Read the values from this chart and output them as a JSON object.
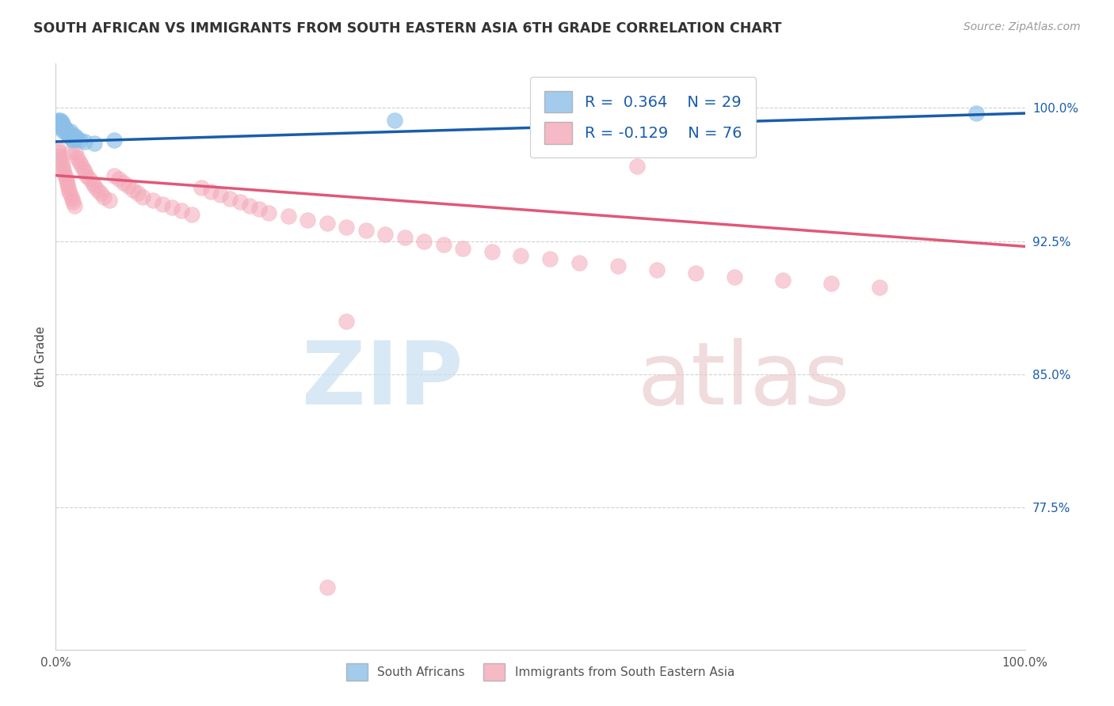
{
  "title": "SOUTH AFRICAN VS IMMIGRANTS FROM SOUTH EASTERN ASIA 6TH GRADE CORRELATION CHART",
  "source": "Source: ZipAtlas.com",
  "ylabel": "6th Grade",
  "R_blue": 0.364,
  "N_blue": 29,
  "R_pink": -0.129,
  "N_pink": 76,
  "blue_color": "#8BBFE8",
  "pink_color": "#F4A8B8",
  "blue_line_color": "#1A5DAB",
  "pink_line_color": "#E05878",
  "xlim": [
    0.0,
    1.0
  ],
  "ylim": [
    0.695,
    1.025
  ],
  "yticks": [
    0.775,
    0.85,
    0.925,
    1.0
  ],
  "ytick_labels": [
    "77.5%",
    "85.0%",
    "92.5%",
    "100.0%"
  ],
  "xtick_labels": [
    "0.0%",
    "100.0%"
  ],
  "blue_line_x0": 0.0,
  "blue_line_y0": 0.981,
  "blue_line_x1": 1.0,
  "blue_line_y1": 0.997,
  "pink_line_x0": 0.0,
  "pink_line_y0": 0.962,
  "pink_line_x1": 1.0,
  "pink_line_y1": 0.922,
  "blue_x": [
    0.002,
    0.003,
    0.004,
    0.005,
    0.005,
    0.006,
    0.006,
    0.007,
    0.007,
    0.008,
    0.008,
    0.009,
    0.01,
    0.011,
    0.012,
    0.013,
    0.014,
    0.015,
    0.016,
    0.017,
    0.018,
    0.02,
    0.022,
    0.025,
    0.03,
    0.04,
    0.06,
    0.35,
    0.95
  ],
  "blue_y": [
    0.993,
    0.992,
    0.991,
    0.993,
    0.99,
    0.992,
    0.989,
    0.991,
    0.988,
    0.99,
    0.987,
    0.989,
    0.988,
    0.987,
    0.986,
    0.985,
    0.984,
    0.987,
    0.983,
    0.985,
    0.982,
    0.984,
    0.983,
    0.982,
    0.981,
    0.98,
    0.982,
    0.993,
    0.997
  ],
  "pink_x": [
    0.002,
    0.003,
    0.004,
    0.005,
    0.006,
    0.007,
    0.008,
    0.009,
    0.01,
    0.011,
    0.012,
    0.013,
    0.014,
    0.015,
    0.016,
    0.017,
    0.018,
    0.019,
    0.02,
    0.022,
    0.024,
    0.026,
    0.028,
    0.03,
    0.032,
    0.035,
    0.038,
    0.04,
    0.043,
    0.046,
    0.05,
    0.055,
    0.06,
    0.065,
    0.07,
    0.075,
    0.08,
    0.085,
    0.09,
    0.1,
    0.11,
    0.12,
    0.13,
    0.14,
    0.15,
    0.16,
    0.17,
    0.18,
    0.19,
    0.2,
    0.21,
    0.22,
    0.24,
    0.26,
    0.28,
    0.3,
    0.32,
    0.34,
    0.36,
    0.38,
    0.4,
    0.42,
    0.45,
    0.48,
    0.51,
    0.54,
    0.58,
    0.62,
    0.66,
    0.7,
    0.75,
    0.8,
    0.85,
    0.6,
    0.3,
    0.28
  ],
  "pink_y": [
    0.977,
    0.975,
    0.973,
    0.971,
    0.969,
    0.967,
    0.965,
    0.963,
    0.961,
    0.959,
    0.957,
    0.955,
    0.953,
    0.951,
    0.975,
    0.949,
    0.947,
    0.945,
    0.975,
    0.972,
    0.97,
    0.968,
    0.966,
    0.964,
    0.962,
    0.96,
    0.958,
    0.956,
    0.954,
    0.952,
    0.95,
    0.948,
    0.962,
    0.96,
    0.958,
    0.956,
    0.954,
    0.952,
    0.95,
    0.948,
    0.946,
    0.944,
    0.942,
    0.94,
    0.955,
    0.953,
    0.951,
    0.949,
    0.947,
    0.945,
    0.943,
    0.941,
    0.939,
    0.937,
    0.935,
    0.933,
    0.931,
    0.929,
    0.927,
    0.925,
    0.923,
    0.921,
    0.919,
    0.917,
    0.915,
    0.913,
    0.911,
    0.909,
    0.907,
    0.905,
    0.903,
    0.901,
    0.899,
    0.967,
    0.88,
    0.73
  ]
}
